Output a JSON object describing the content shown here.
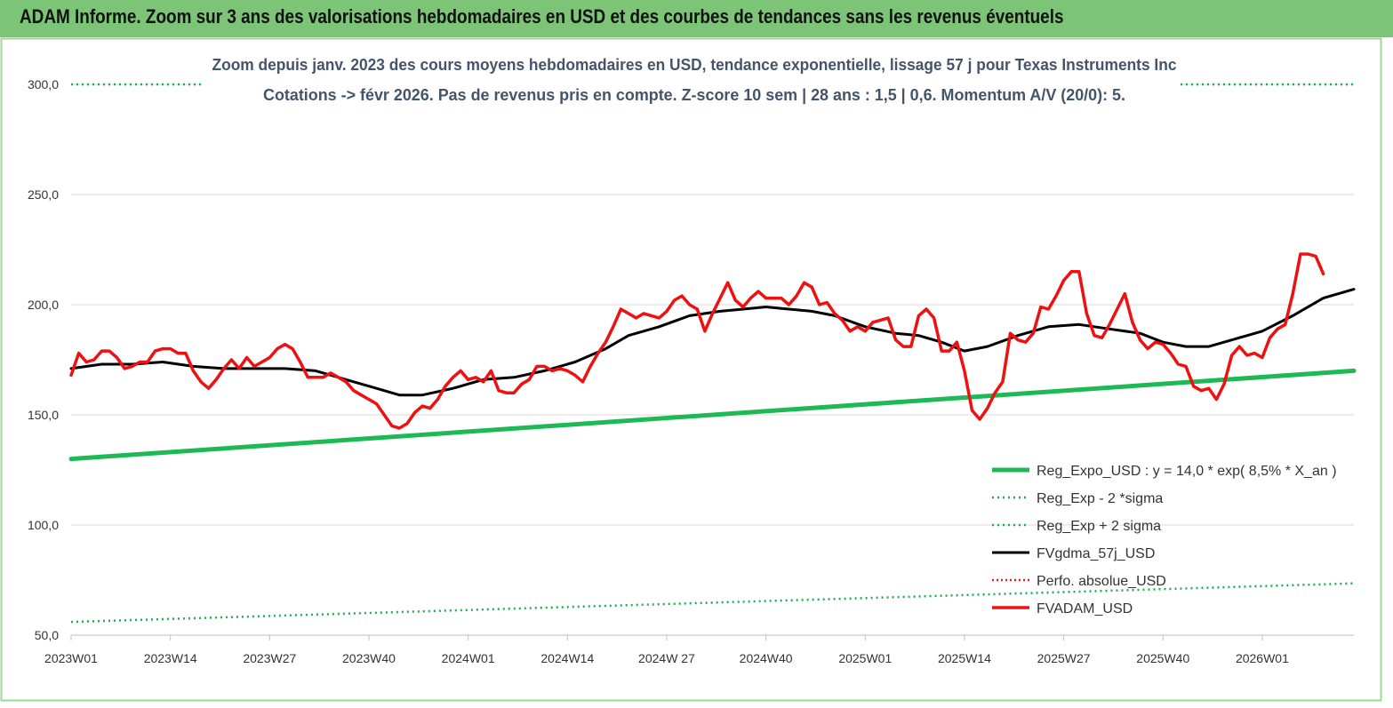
{
  "banner": {
    "title": "ADAM Informe. Zoom sur 3 ans des valorisations hebdomadaires en USD et des courbes de tendances sans les revenus éventuels"
  },
  "colors": {
    "banner": "#7cc576",
    "reg_expo": "#1db954",
    "sigma": "#22aa55",
    "fvgdma": "#000000",
    "perfo": "#e02020",
    "fvadam": "#ee1111",
    "title_text": "#44546a"
  },
  "chart_data": {
    "type": "line",
    "title_line1": "Zoom depuis janv. 2023 des cours moyens hebdomadaires en USD, tendance exponentielle, lissage 57 j pour Texas Instruments Inc",
    "title_line2": "Cotations -> févr 2026. Pas de revenus pris en compte. Z-score 10 sem | 28 ans : 1,5 | 0,6. Momentum A/V (20/0): 5.",
    "ylim": [
      50,
      300
    ],
    "y_ticks": [
      "50,0",
      "100,0",
      "150,0",
      "200,0",
      "250,0",
      "300,0"
    ],
    "y_tick_values": [
      50,
      100,
      150,
      200,
      250,
      300
    ],
    "x_ticks": [
      "2023W01",
      "2023W14",
      "2023W27",
      "2023W40",
      "2024W01",
      "2024W14",
      "2024W 27",
      "2024W40",
      "2025W01",
      "2025W14",
      "2025W27",
      "2025W40",
      "2026W01"
    ],
    "x_tick_weeks": [
      0,
      13,
      26,
      39,
      52,
      65,
      78,
      91,
      104,
      117,
      130,
      143,
      156
    ],
    "x_max_week": 168,
    "grid": true,
    "legend_position": "bottom-right",
    "series": [
      {
        "name": "Reg_Expo_USD : y = 14,0 * exp( 8,5% *  X_an )",
        "style": "thick",
        "points": [
          [
            0,
            130
          ],
          [
            168,
            170
          ]
        ]
      },
      {
        "name": "Reg_Exp - 2 *sigma",
        "style": "dotted",
        "points": [
          [
            0,
            56
          ],
          [
            168,
            73.5
          ]
        ]
      },
      {
        "name": "Reg_Exp + 2 sigma",
        "style": "dotted",
        "points": [
          [
            0,
            300
          ],
          [
            20,
            300
          ],
          [
            146,
            300
          ],
          [
            168,
            300
          ]
        ]
      },
      {
        "name": "FVgdma_57j_USD",
        "style": "solid",
        "points": [
          [
            0,
            171
          ],
          [
            4,
            173
          ],
          [
            8,
            173
          ],
          [
            12,
            174
          ],
          [
            16,
            172
          ],
          [
            20,
            171
          ],
          [
            24,
            171
          ],
          [
            28,
            171
          ],
          [
            32,
            170
          ],
          [
            36,
            166
          ],
          [
            40,
            162
          ],
          [
            43,
            159
          ],
          [
            46,
            159
          ],
          [
            50,
            162
          ],
          [
            54,
            166
          ],
          [
            58,
            167
          ],
          [
            62,
            170
          ],
          [
            66,
            174
          ],
          [
            70,
            180
          ],
          [
            73,
            186
          ],
          [
            77,
            190
          ],
          [
            81,
            195
          ],
          [
            85,
            197
          ],
          [
            88,
            198
          ],
          [
            91,
            199
          ],
          [
            94,
            198
          ],
          [
            97,
            197
          ],
          [
            100,
            195
          ],
          [
            104,
            190
          ],
          [
            108,
            187
          ],
          [
            111,
            186
          ],
          [
            114,
            183
          ],
          [
            117,
            179
          ],
          [
            120,
            181
          ],
          [
            124,
            186
          ],
          [
            128,
            190
          ],
          [
            132,
            191
          ],
          [
            136,
            189
          ],
          [
            140,
            187
          ],
          [
            143,
            183
          ],
          [
            146,
            181
          ],
          [
            149,
            181
          ],
          [
            152,
            184
          ],
          [
            156,
            188
          ],
          [
            160,
            195
          ],
          [
            164,
            203
          ],
          [
            168,
            207
          ]
        ]
      },
      {
        "name": "Perfo. absolue_USD",
        "style": "dotted",
        "points": []
      },
      {
        "name": "FVADAM_USD",
        "style": "solid",
        "points": [
          [
            0,
            168
          ],
          [
            1,
            178
          ],
          [
            2,
            174
          ],
          [
            3,
            175
          ],
          [
            4,
            179
          ],
          [
            5,
            179
          ],
          [
            6,
            176
          ],
          [
            7,
            171
          ],
          [
            8,
            172
          ],
          [
            9,
            174
          ],
          [
            10,
            174
          ],
          [
            11,
            179
          ],
          [
            12,
            180
          ],
          [
            13,
            180
          ],
          [
            14,
            178
          ],
          [
            15,
            178
          ],
          [
            16,
            170
          ],
          [
            17,
            165
          ],
          [
            18,
            162
          ],
          [
            19,
            166
          ],
          [
            20,
            171
          ],
          [
            21,
            175
          ],
          [
            22,
            171
          ],
          [
            23,
            176
          ],
          [
            24,
            172
          ],
          [
            25,
            174
          ],
          [
            26,
            176
          ],
          [
            27,
            180
          ],
          [
            28,
            182
          ],
          [
            29,
            180
          ],
          [
            30,
            174
          ],
          [
            31,
            167
          ],
          [
            32,
            167
          ],
          [
            33,
            167
          ],
          [
            34,
            169
          ],
          [
            35,
            167
          ],
          [
            36,
            165
          ],
          [
            37,
            161
          ],
          [
            38,
            159
          ],
          [
            39,
            157
          ],
          [
            40,
            155
          ],
          [
            41,
            150
          ],
          [
            42,
            145
          ],
          [
            43,
            144
          ],
          [
            44,
            146
          ],
          [
            45,
            151
          ],
          [
            46,
            154
          ],
          [
            47,
            153
          ],
          [
            48,
            157
          ],
          [
            49,
            163
          ],
          [
            50,
            167
          ],
          [
            51,
            170
          ],
          [
            52,
            166
          ],
          [
            53,
            167
          ],
          [
            54,
            165
          ],
          [
            55,
            170
          ],
          [
            56,
            161
          ],
          [
            57,
            160
          ],
          [
            58,
            160
          ],
          [
            59,
            164
          ],
          [
            60,
            166
          ],
          [
            61,
            172
          ],
          [
            62,
            172
          ],
          [
            63,
            170
          ],
          [
            64,
            171
          ],
          [
            65,
            170
          ],
          [
            66,
            168
          ],
          [
            67,
            165
          ],
          [
            68,
            172
          ],
          [
            69,
            178
          ],
          [
            70,
            183
          ],
          [
            71,
            190
          ],
          [
            72,
            198
          ],
          [
            73,
            196
          ],
          [
            74,
            194
          ],
          [
            75,
            196
          ],
          [
            76,
            195
          ],
          [
            77,
            194
          ],
          [
            78,
            197
          ],
          [
            79,
            202
          ],
          [
            80,
            204
          ],
          [
            81,
            200
          ],
          [
            82,
            198
          ],
          [
            83,
            188
          ],
          [
            84,
            196
          ],
          [
            85,
            203
          ],
          [
            86,
            210
          ],
          [
            87,
            202
          ],
          [
            88,
            199
          ],
          [
            89,
            203
          ],
          [
            90,
            206
          ],
          [
            91,
            203
          ],
          [
            92,
            203
          ],
          [
            93,
            203
          ],
          [
            94,
            200
          ],
          [
            95,
            204
          ],
          [
            96,
            210
          ],
          [
            97,
            208
          ],
          [
            98,
            200
          ],
          [
            99,
            201
          ],
          [
            100,
            196
          ],
          [
            101,
            193
          ],
          [
            102,
            188
          ],
          [
            103,
            190
          ],
          [
            104,
            188
          ],
          [
            105,
            192
          ],
          [
            106,
            193
          ],
          [
            107,
            194
          ],
          [
            108,
            184
          ],
          [
            109,
            181
          ],
          [
            110,
            181
          ],
          [
            111,
            195
          ],
          [
            112,
            198
          ],
          [
            113,
            194
          ],
          [
            114,
            179
          ],
          [
            115,
            179
          ],
          [
            116,
            183
          ],
          [
            117,
            170
          ],
          [
            118,
            152
          ],
          [
            119,
            148
          ],
          [
            120,
            153
          ],
          [
            121,
            160
          ],
          [
            122,
            165
          ],
          [
            123,
            187
          ],
          [
            124,
            184
          ],
          [
            125,
            183
          ],
          [
            126,
            187
          ],
          [
            127,
            199
          ],
          [
            128,
            198
          ],
          [
            129,
            204
          ],
          [
            130,
            211
          ],
          [
            131,
            215
          ],
          [
            132,
            215
          ],
          [
            133,
            196
          ],
          [
            134,
            186
          ],
          [
            135,
            185
          ],
          [
            136,
            191
          ],
          [
            137,
            198
          ],
          [
            138,
            205
          ],
          [
            139,
            192
          ],
          [
            140,
            184
          ],
          [
            141,
            180
          ],
          [
            142,
            183
          ],
          [
            143,
            182
          ],
          [
            144,
            178
          ],
          [
            145,
            173
          ],
          [
            146,
            172
          ],
          [
            147,
            163
          ],
          [
            148,
            161
          ],
          [
            149,
            162
          ],
          [
            150,
            157
          ],
          [
            151,
            164
          ],
          [
            152,
            177
          ],
          [
            153,
            181
          ],
          [
            154,
            177
          ],
          [
            155,
            178
          ],
          [
            156,
            176
          ],
          [
            157,
            185
          ],
          [
            158,
            189
          ],
          [
            159,
            191
          ],
          [
            160,
            205
          ],
          [
            161,
            223
          ],
          [
            162,
            223
          ],
          [
            163,
            222
          ],
          [
            164,
            214
          ]
        ]
      }
    ]
  }
}
